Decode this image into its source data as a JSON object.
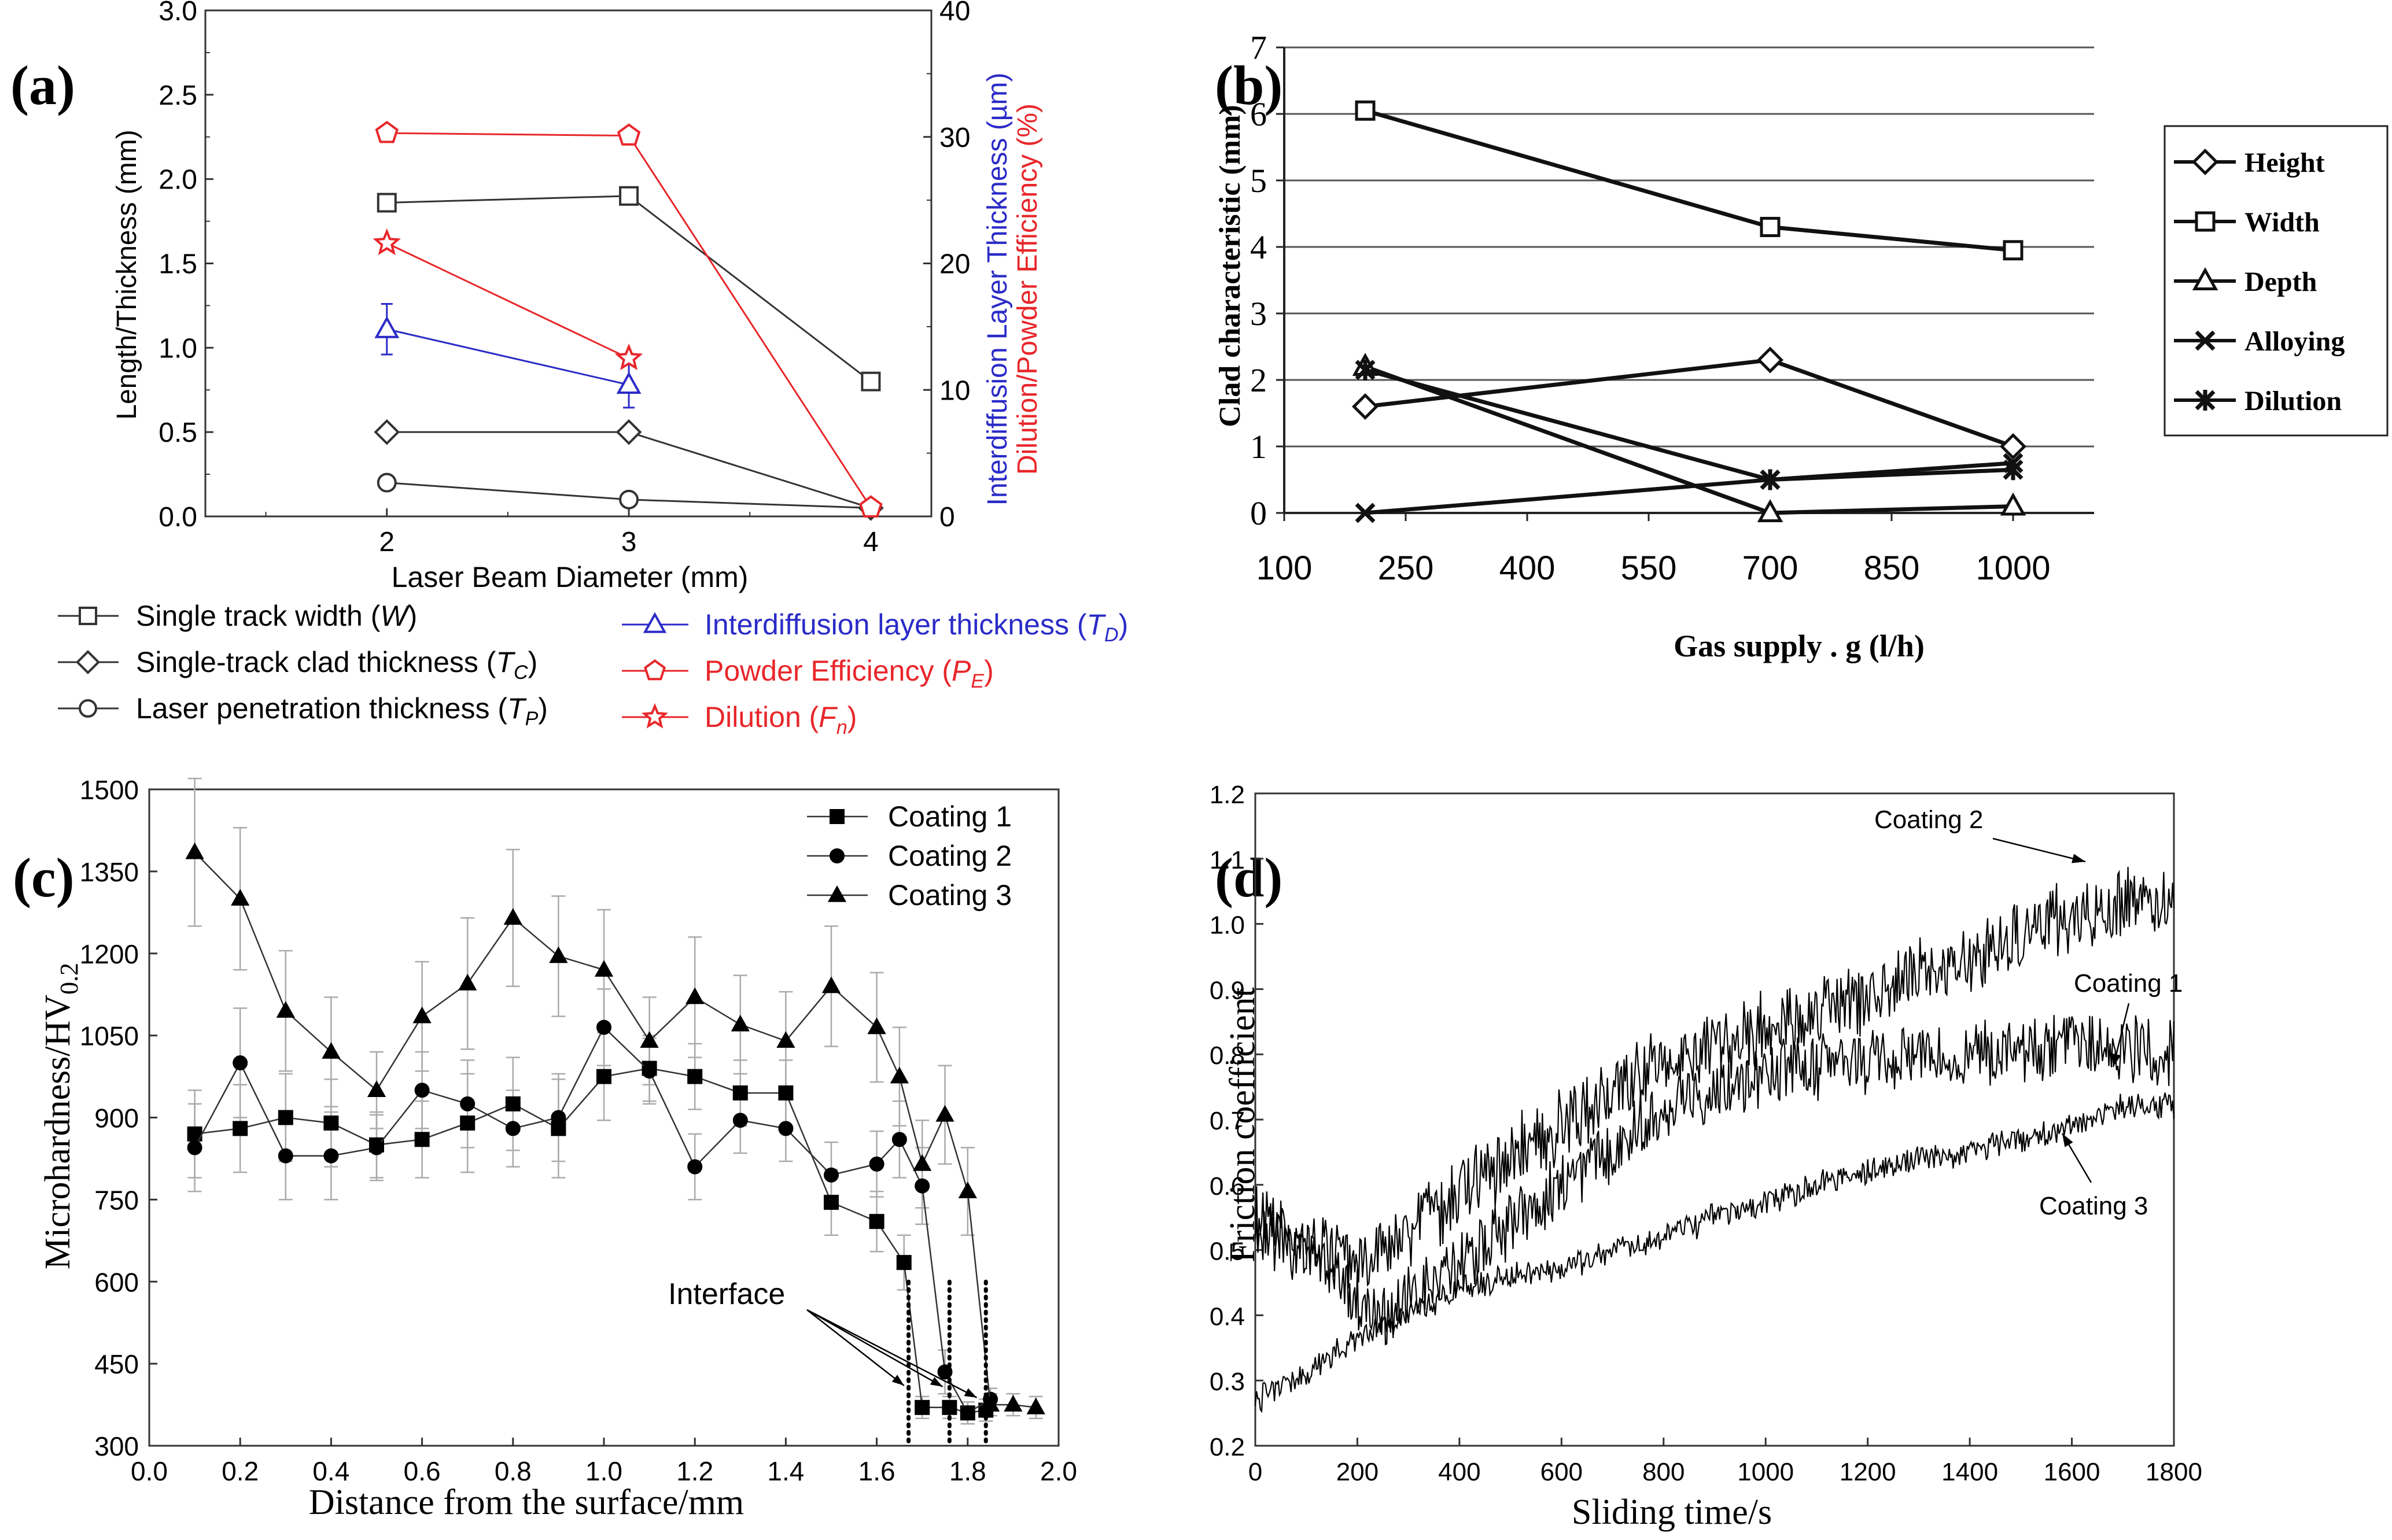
{
  "chart_data": [
    {
      "panel": "(a)",
      "type": "line",
      "xlabel": "Laser Beam Diameter (mm)",
      "ylabel": "Length/Thickness (mm)",
      "ylabel_right_blue": "Interdiffusion Layer Thickness (µm)",
      "ylabel_right_red": "Dilution/Powder Efficiency (%)",
      "xlim": [
        1.25,
        4.25
      ],
      "ylim": [
        0,
        3.0
      ],
      "ylim_right": [
        0,
        40
      ],
      "x_ticks": [
        "2",
        "3",
        "4"
      ],
      "y_ticks": [
        "0.0",
        "0.5",
        "1.0",
        "1.5",
        "2.0",
        "2.5",
        "3.0"
      ],
      "y_right_ticks": [
        "0",
        "10",
        "20",
        "30",
        "40"
      ],
      "series": [
        {
          "name": "Single track width (W)",
          "axis": "left",
          "color": "#333333",
          "marker": "square",
          "x": [
            2,
            3,
            4
          ],
          "values": [
            1.86,
            1.9,
            0.8
          ]
        },
        {
          "name": "Single-track clad thickness (TC)",
          "axis": "left",
          "color": "#333333",
          "marker": "diamond",
          "x": [
            2,
            3,
            4
          ],
          "values": [
            0.5,
            0.5,
            0.05
          ]
        },
        {
          "name": "Laser penetration thickness (TP)",
          "axis": "left",
          "color": "#333333",
          "marker": "circle",
          "x": [
            2,
            3,
            4
          ],
          "values": [
            0.2,
            0.1,
            0.05
          ]
        },
        {
          "name": "Interdiffusion layer thickness (TD)",
          "axis": "right",
          "color": "#2b2bc8",
          "marker": "triangle",
          "x": [
            2,
            3
          ],
          "values": [
            14.8,
            10.4
          ],
          "err": [
            2.0,
            1.8
          ]
        },
        {
          "name": "Powder Efficiency (PE)",
          "axis": "right",
          "color": "#e8262a",
          "marker": "pentagon",
          "x": [
            2,
            3,
            4
          ],
          "values": [
            30.3,
            30.1,
            0.7
          ]
        },
        {
          "name": "Dilution (Fn)",
          "axis": "right",
          "color": "#e8262a",
          "marker": "star",
          "x": [
            2,
            3
          ],
          "values": [
            21.6,
            12.5
          ]
        }
      ],
      "legend": {
        "left": [
          {
            "label": "Single track width (",
            "var": "W",
            "sub": "",
            "marker": "square"
          },
          {
            "label": "Single-track clad thickness (",
            "var": "T",
            "sub": "C",
            "marker": "diamond"
          },
          {
            "label": "Laser penetration thickness (",
            "var": "T",
            "sub": "P",
            "marker": "circle"
          }
        ],
        "right": [
          {
            "label": "Interdiffusion layer thickness (",
            "var": "T",
            "sub": "D",
            "marker": "triangle",
            "color": "#2b2bc8"
          },
          {
            "label": "Powder Efficiency (",
            "var": "P",
            "sub": "E",
            "marker": "pentagon",
            "color": "#e8262a"
          },
          {
            "label": "Dilution (",
            "var": "F",
            "sub": "n",
            "marker": "star",
            "color": "#e8262a"
          }
        ]
      }
    },
    {
      "panel": "(b)",
      "type": "line",
      "xlabel": "Gas supply . g (l/h)",
      "ylabel": "Clad characteristic (mm)",
      "xlim": [
        100,
        1100
      ],
      "ylim": [
        0,
        7
      ],
      "x_ticks": [
        "100",
        "250",
        "400",
        "550",
        "700",
        "850",
        "1000"
      ],
      "y_ticks": [
        "0",
        "1",
        "2",
        "3",
        "4",
        "5",
        "6",
        "7"
      ],
      "grid": "horizontal",
      "series": [
        {
          "name": "Height",
          "marker": "diamond",
          "x": [
            200,
            700,
            1000
          ],
          "values": [
            1.6,
            2.3,
            1.0
          ]
        },
        {
          "name": "Width",
          "marker": "square",
          "x": [
            200,
            700,
            1000
          ],
          "values": [
            6.05,
            4.3,
            3.95
          ]
        },
        {
          "name": "Depth",
          "marker": "triangle",
          "x": [
            200,
            700,
            1000
          ],
          "values": [
            2.2,
            0.0,
            0.1
          ]
        },
        {
          "name": "Alloying",
          "marker": "x",
          "x": [
            200,
            700,
            1000
          ],
          "values": [
            0.0,
            0.5,
            0.75
          ]
        },
        {
          "name": "Dilution",
          "marker": "asterisk",
          "x": [
            200,
            700,
            1000
          ],
          "values": [
            2.15,
            0.5,
            0.65
          ]
        }
      ]
    },
    {
      "panel": "(c)",
      "type": "line",
      "xlabel": "Distance from the surface/mm",
      "ylabel": "Microhardness/HV",
      "ylabel_sub": "0.2",
      "xlim": [
        0,
        2.0
      ],
      "ylim": [
        300,
        1500
      ],
      "x_ticks": [
        "0.0",
        "0.2",
        "0.4",
        "0.6",
        "0.8",
        "1.0",
        "1.2",
        "1.4",
        "1.6",
        "1.8",
        "2.0"
      ],
      "y_ticks": [
        "300",
        "450",
        "600",
        "750",
        "900",
        "1050",
        "1200",
        "1350",
        "1500"
      ],
      "annotation": "Interface",
      "interfaces_x": [
        1.67,
        1.76,
        1.84
      ],
      "series": [
        {
          "name": "Coating 1",
          "marker": "square",
          "x": [
            0.1,
            0.2,
            0.3,
            0.4,
            0.5,
            0.6,
            0.7,
            0.8,
            0.9,
            1.0,
            1.1,
            1.2,
            1.3,
            1.4,
            1.5,
            1.6,
            1.66,
            1.7,
            1.76,
            1.8,
            1.84
          ],
          "values": [
            870,
            880,
            900,
            890,
            850,
            860,
            890,
            925,
            880,
            975,
            990,
            975,
            945,
            945,
            745,
            710,
            635,
            370,
            370,
            360,
            365
          ],
          "err": [
            80,
            80,
            80,
            80,
            60,
            70,
            90,
            85,
            90,
            80,
            60,
            60,
            60,
            60,
            60,
            55,
            50,
            20,
            20,
            20,
            20
          ]
        },
        {
          "name": "Coating 2",
          "marker": "circle",
          "x": [
            0.1,
            0.2,
            0.3,
            0.4,
            0.5,
            0.6,
            0.7,
            0.8,
            0.9,
            1.0,
            1.1,
            1.2,
            1.3,
            1.4,
            1.5,
            1.6,
            1.65,
            1.7,
            1.75,
            1.8,
            1.85
          ],
          "values": [
            845,
            1000,
            830,
            830,
            845,
            950,
            925,
            880,
            900,
            1065,
            985,
            810,
            895,
            880,
            795,
            815,
            860,
            775,
            435,
            360,
            385
          ],
          "err": [
            80,
            100,
            80,
            80,
            60,
            70,
            80,
            70,
            80,
            70,
            60,
            60,
            60,
            60,
            60,
            60,
            70,
            70,
            40,
            20,
            20
          ]
        },
        {
          "name": "Coating 3",
          "marker": "triangle",
          "x": [
            0.1,
            0.2,
            0.3,
            0.4,
            0.5,
            0.6,
            0.7,
            0.8,
            0.9,
            1.0,
            1.1,
            1.2,
            1.3,
            1.4,
            1.5,
            1.6,
            1.65,
            1.7,
            1.75,
            1.8,
            1.85,
            1.9,
            1.95
          ],
          "values": [
            1385,
            1300,
            1095,
            1020,
            950,
            1085,
            1145,
            1265,
            1195,
            1170,
            1040,
            1120,
            1070,
            1040,
            1140,
            1065,
            975,
            815,
            905,
            765,
            375,
            375,
            370
          ],
          "err": [
            135,
            130,
            110,
            100,
            70,
            100,
            120,
            125,
            110,
            110,
            80,
            110,
            90,
            90,
            110,
            100,
            90,
            80,
            90,
            80,
            20,
            20,
            20
          ]
        }
      ]
    },
    {
      "panel": "(d)",
      "type": "line",
      "xlabel": "Sliding time/s",
      "ylabel": "Friction coefficient",
      "xlim": [
        0,
        1800
      ],
      "ylim": [
        0.2,
        1.2
      ],
      "x_ticks": [
        "0",
        "200",
        "400",
        "600",
        "800",
        "1000",
        "1200",
        "1400",
        "1600",
        "1800"
      ],
      "y_ticks": [
        "0.2",
        "0.3",
        "0.4",
        "0.5",
        "0.6",
        "0.7",
        "0.8",
        "0.9",
        "1.0",
        "1.1",
        "1.2"
      ],
      "series": [
        {
          "name": "Coating 1",
          "noise": 0.045,
          "x": [
            0,
            100,
            150,
            200,
            250,
            300,
            400,
            500,
            600,
            700,
            800,
            900,
            1000,
            1100,
            1200,
            1300,
            1400,
            1500,
            1600,
            1700,
            1800
          ],
          "values": [
            0.55,
            0.5,
            0.47,
            0.42,
            0.4,
            0.42,
            0.48,
            0.54,
            0.6,
            0.66,
            0.72,
            0.75,
            0.77,
            0.78,
            0.79,
            0.8,
            0.8,
            0.8,
            0.81,
            0.81,
            0.8
          ]
        },
        {
          "name": "Coating 2",
          "noise": 0.05,
          "x": [
            0,
            100,
            200,
            300,
            400,
            500,
            600,
            700,
            800,
            900,
            1000,
            1100,
            1200,
            1300,
            1400,
            1500,
            1600,
            1700,
            1800
          ],
          "values": [
            0.52,
            0.5,
            0.48,
            0.53,
            0.59,
            0.64,
            0.69,
            0.74,
            0.79,
            0.81,
            0.84,
            0.87,
            0.89,
            0.92,
            0.95,
            0.98,
            1.01,
            1.03,
            1.04
          ]
        },
        {
          "name": "Coating 3",
          "noise": 0.018,
          "x": [
            0,
            100,
            200,
            300,
            400,
            500,
            600,
            700,
            800,
            900,
            1000,
            1100,
            1200,
            1300,
            1400,
            1500,
            1600,
            1700,
            1800
          ],
          "values": [
            0.27,
            0.31,
            0.37,
            0.4,
            0.44,
            0.46,
            0.47,
            0.5,
            0.52,
            0.55,
            0.57,
            0.6,
            0.62,
            0.64,
            0.65,
            0.67,
            0.69,
            0.72,
            0.72
          ]
        }
      ],
      "annotations": [
        "Coating 2",
        "Coating 1",
        "Coating 3"
      ]
    }
  ]
}
